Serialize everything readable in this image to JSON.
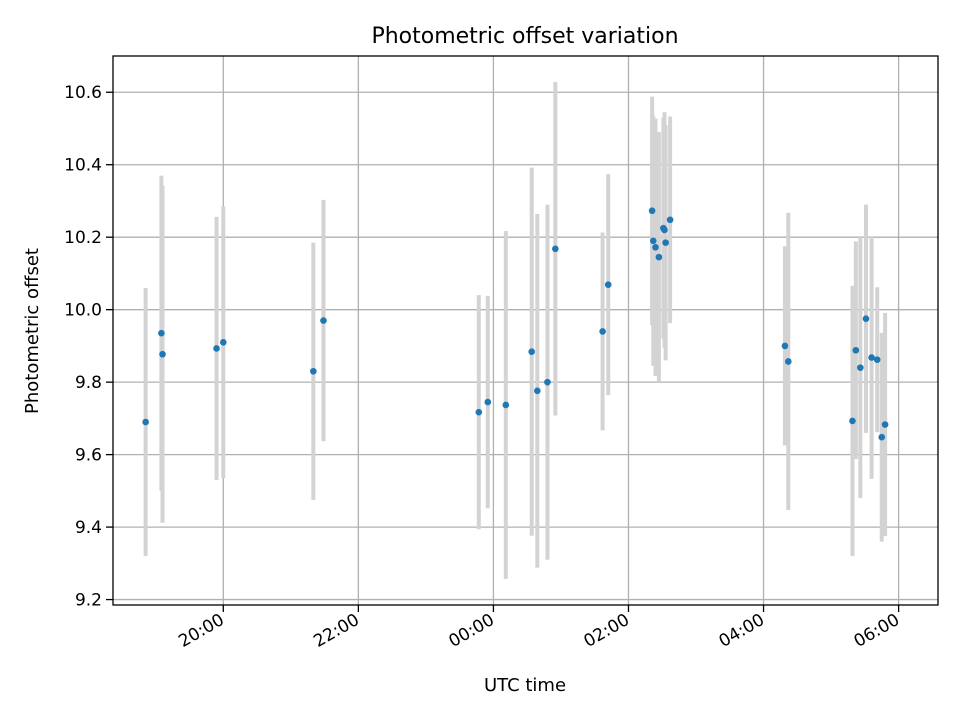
{
  "chart_data": {
    "type": "scatter",
    "title": "Photometric offset variation",
    "xlabel": "UTC time",
    "ylabel": "Photometric offset",
    "x_axis_kind": "time",
    "x_ticks": [
      "20:00",
      "22:00",
      "00:00",
      "02:00",
      "04:00",
      "06:00"
    ],
    "y_ticks": [
      "9.2",
      "9.4",
      "9.6",
      "9.8",
      "10.0",
      "10.2",
      "10.4",
      "10.6"
    ],
    "ylim": [
      9.185,
      10.7
    ],
    "xlim": [
      "18:22",
      "06:35"
    ],
    "grid": true,
    "marker_color": "#1f77b4",
    "errorbar_color": "#d3d3d3",
    "points": [
      {
        "t": "18:51",
        "y": 9.69,
        "err": 0.37
      },
      {
        "t": "19:05",
        "y": 9.935,
        "err": 0.435
      },
      {
        "t": "19:06",
        "y": 9.877,
        "err": 0.465
      },
      {
        "t": "19:54",
        "y": 9.893,
        "err": 0.363
      },
      {
        "t": "20:00",
        "y": 9.91,
        "err": 0.375
      },
      {
        "t": "21:20",
        "y": 9.83,
        "err": 0.355
      },
      {
        "t": "21:29",
        "y": 9.97,
        "err": 0.333
      },
      {
        "t": "23:47",
        "y": 9.717,
        "err": 0.323
      },
      {
        "t": "23:55",
        "y": 9.745,
        "err": 0.293
      },
      {
        "t": "00:11",
        "y": 9.737,
        "err": 0.48
      },
      {
        "t": "00:34",
        "y": 9.884,
        "err": 0.508
      },
      {
        "t": "00:39",
        "y": 9.776,
        "err": 0.488
      },
      {
        "t": "00:48",
        "y": 9.8,
        "err": 0.49
      },
      {
        "t": "00:55",
        "y": 10.168,
        "err": 0.46
      },
      {
        "t": "01:37",
        "y": 9.94,
        "err": 0.273
      },
      {
        "t": "01:42",
        "y": 10.069,
        "err": 0.305
      },
      {
        "t": "02:21",
        "y": 10.273,
        "err": 0.315
      },
      {
        "t": "02:22",
        "y": 10.19,
        "err": 0.345
      },
      {
        "t": "02:24",
        "y": 10.172,
        "err": 0.355
      },
      {
        "t": "02:27",
        "y": 10.145,
        "err": 0.345
      },
      {
        "t": "02:31",
        "y": 10.225,
        "err": 0.305
      },
      {
        "t": "02:32",
        "y": 10.22,
        "err": 0.325
      },
      {
        "t": "02:33",
        "y": 10.185,
        "err": 0.325
      },
      {
        "t": "02:37",
        "y": 10.248,
        "err": 0.285
      },
      {
        "t": "04:19",
        "y": 9.9,
        "err": 0.275
      },
      {
        "t": "04:22",
        "y": 9.857,
        "err": 0.41
      },
      {
        "t": "05:19",
        "y": 9.693,
        "err": 0.373
      },
      {
        "t": "05:22",
        "y": 9.888,
        "err": 0.3
      },
      {
        "t": "05:26",
        "y": 9.84,
        "err": 0.36
      },
      {
        "t": "05:31",
        "y": 9.975,
        "err": 0.315
      },
      {
        "t": "05:36",
        "y": 9.868,
        "err": 0.335
      },
      {
        "t": "05:41",
        "y": 9.862,
        "err": 0.2
      },
      {
        "t": "05:45",
        "y": 9.648,
        "err": 0.288
      },
      {
        "t": "05:48",
        "y": 9.683,
        "err": 0.308
      }
    ]
  }
}
